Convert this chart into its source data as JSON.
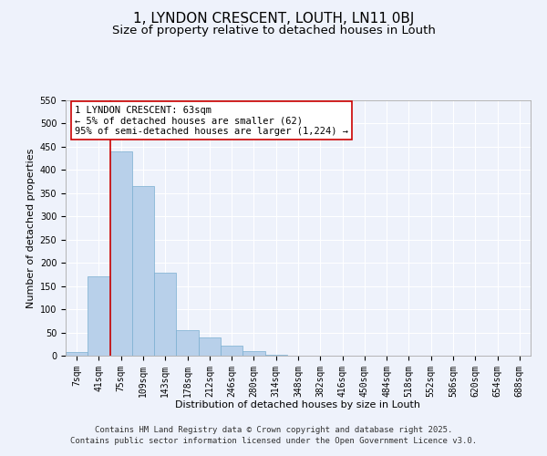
{
  "title": "1, LYNDON CRESCENT, LOUTH, LN11 0BJ",
  "subtitle": "Size of property relative to detached houses in Louth",
  "xlabel": "Distribution of detached houses by size in Louth",
  "ylabel": "Number of detached properties",
  "bar_labels": [
    "7sqm",
    "41sqm",
    "75sqm",
    "109sqm",
    "143sqm",
    "178sqm",
    "212sqm",
    "246sqm",
    "280sqm",
    "314sqm",
    "348sqm",
    "382sqm",
    "416sqm",
    "450sqm",
    "484sqm",
    "518sqm",
    "552sqm",
    "586sqm",
    "620sqm",
    "654sqm",
    "688sqm"
  ],
  "bar_values": [
    8,
    170,
    440,
    365,
    178,
    55,
    40,
    22,
    10,
    2,
    0,
    0,
    0,
    0,
    0,
    0,
    0,
    0,
    0,
    0,
    0
  ],
  "bar_color": "#b8d0ea",
  "bar_edge_color": "#7aaed0",
  "ylim": [
    0,
    550
  ],
  "yticks": [
    0,
    50,
    100,
    150,
    200,
    250,
    300,
    350,
    400,
    450,
    500,
    550
  ],
  "vline_x": 1.5,
  "vline_color": "#cc0000",
  "annotation_title": "1 LYNDON CRESCENT: 63sqm",
  "annotation_line1": "← 5% of detached houses are smaller (62)",
  "annotation_line2": "95% of semi-detached houses are larger (1,224) →",
  "annotation_box_color": "#ffffff",
  "annotation_box_edge": "#cc0000",
  "bg_color": "#eef2fb",
  "footer1": "Contains HM Land Registry data © Crown copyright and database right 2025.",
  "footer2": "Contains public sector information licensed under the Open Government Licence v3.0.",
  "grid_color": "#ffffff",
  "title_fontsize": 11,
  "subtitle_fontsize": 9.5,
  "axis_label_fontsize": 8,
  "tick_fontsize": 7,
  "annotation_fontsize": 7.5,
  "footer_fontsize": 6.5
}
